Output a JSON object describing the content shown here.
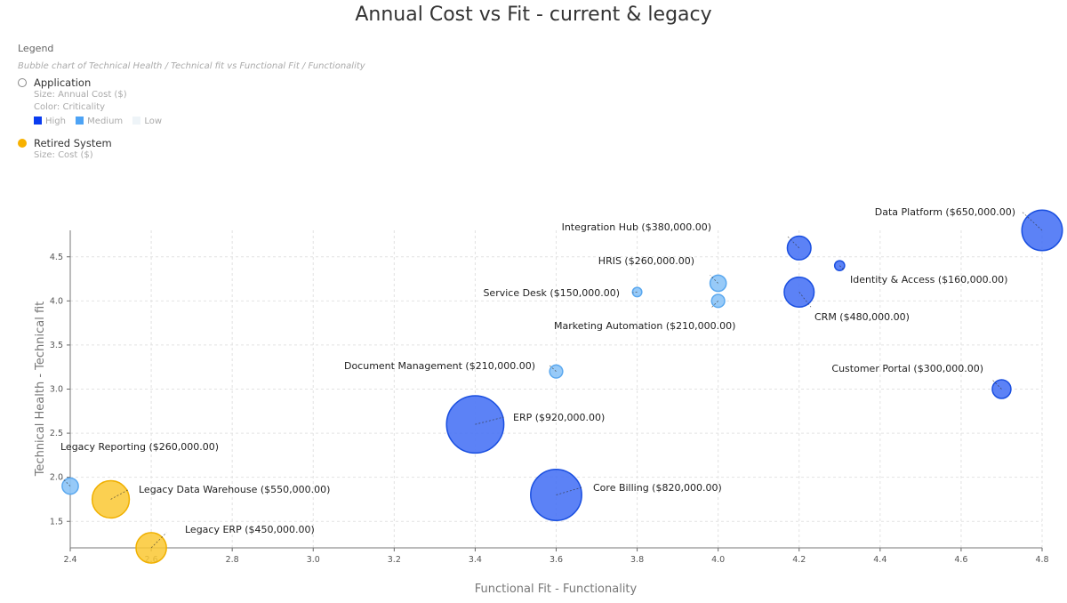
{
  "chart_data": {
    "type": "scatter",
    "subtype": "bubble",
    "title": "Annual Cost vs Fit - current & legacy",
    "xlabel": "Functional Fit - Functionality",
    "ylabel": "Technical Health - Technical fit",
    "xlim": [
      2.4,
      4.8
    ],
    "ylim": [
      1.2,
      4.8
    ],
    "xticks": [
      "2.4",
      "2.6",
      "2.8",
      "3.0",
      "3.2",
      "3.4",
      "3.6",
      "3.8",
      "4.0",
      "4.2",
      "4.4",
      "4.6",
      "4.8"
    ],
    "yticks": [
      "1.5",
      "2.0",
      "2.5",
      "3.0",
      "3.5",
      "4.0",
      "4.5"
    ],
    "grid": true,
    "legend": {
      "heading": "Legend",
      "description": "Bubble chart of Technical Health / Technical fit vs Functional Fit / Functionality",
      "application": {
        "label": "Application",
        "size": "Size: Annual Cost ($)",
        "color": "Color: Criticality",
        "levels": [
          {
            "label": "High",
            "color": "#0a3cf0"
          },
          {
            "label": "Medium",
            "color": "#4da3f5"
          },
          {
            "label": "Low",
            "color": "#eef4f8"
          }
        ]
      },
      "retired": {
        "label": "Retired System",
        "size": "Size: Cost ($)",
        "color": "#f7b100"
      },
      "placement": "top-left"
    },
    "colors": {
      "High": "#4a74f5",
      "Medium": "#8cc4f7",
      "Retired": "#fac833"
    },
    "points": [
      {
        "name": "Data Platform",
        "x": 4.8,
        "y": 4.8,
        "cost": 650000,
        "label": "Data Platform ($650,000.00)",
        "category": "High"
      },
      {
        "name": "Integration Hub",
        "x": 4.2,
        "y": 4.6,
        "cost": 380000,
        "label": "Integration Hub ($380,000.00)",
        "category": "High"
      },
      {
        "name": "Identity & Access",
        "x": 4.3,
        "y": 4.4,
        "cost": 160000,
        "label": "Identity & Access ($160,000.00)",
        "category": "High"
      },
      {
        "name": "HRIS",
        "x": 4.0,
        "y": 4.2,
        "cost": 260000,
        "label": "HRIS ($260,000.00)",
        "category": "Medium"
      },
      {
        "name": "Service Desk",
        "x": 3.8,
        "y": 4.1,
        "cost": 150000,
        "label": "Service Desk ($150,000.00)",
        "category": "Medium"
      },
      {
        "name": "Marketing Automation",
        "x": 4.0,
        "y": 4.0,
        "cost": 210000,
        "label": "Marketing Automation ($210,000.00)",
        "category": "Medium"
      },
      {
        "name": "CRM",
        "x": 4.2,
        "y": 4.1,
        "cost": 480000,
        "label": "CRM ($480,000.00)",
        "category": "High"
      },
      {
        "name": "Document Management",
        "x": 3.6,
        "y": 3.2,
        "cost": 210000,
        "label": "Document Management ($210,000.00)",
        "category": "Medium"
      },
      {
        "name": "Customer Portal",
        "x": 4.7,
        "y": 3.0,
        "cost": 300000,
        "label": "Customer Portal ($300,000.00)",
        "category": "High"
      },
      {
        "name": "ERP",
        "x": 3.4,
        "y": 2.6,
        "cost": 920000,
        "label": "ERP ($920,000.00)",
        "category": "High"
      },
      {
        "name": "Core Billing",
        "x": 3.6,
        "y": 1.8,
        "cost": 820000,
        "label": "Core Billing ($820,000.00)",
        "category": "High"
      },
      {
        "name": "Legacy Reporting",
        "x": 2.4,
        "y": 1.9,
        "cost": 260000,
        "label": "Legacy Reporting ($260,000.00)",
        "category": "Medium"
      },
      {
        "name": "Legacy Data Warehouse",
        "x": 2.5,
        "y": 1.75,
        "cost": 550000,
        "label": "Legacy Data Warehouse ($550,000.00)",
        "category": "Retired"
      },
      {
        "name": "Legacy ERP",
        "x": 2.6,
        "y": 1.2,
        "cost": 450000,
        "label": "Legacy ERP ($450,000.00)",
        "category": "Retired"
      }
    ]
  }
}
